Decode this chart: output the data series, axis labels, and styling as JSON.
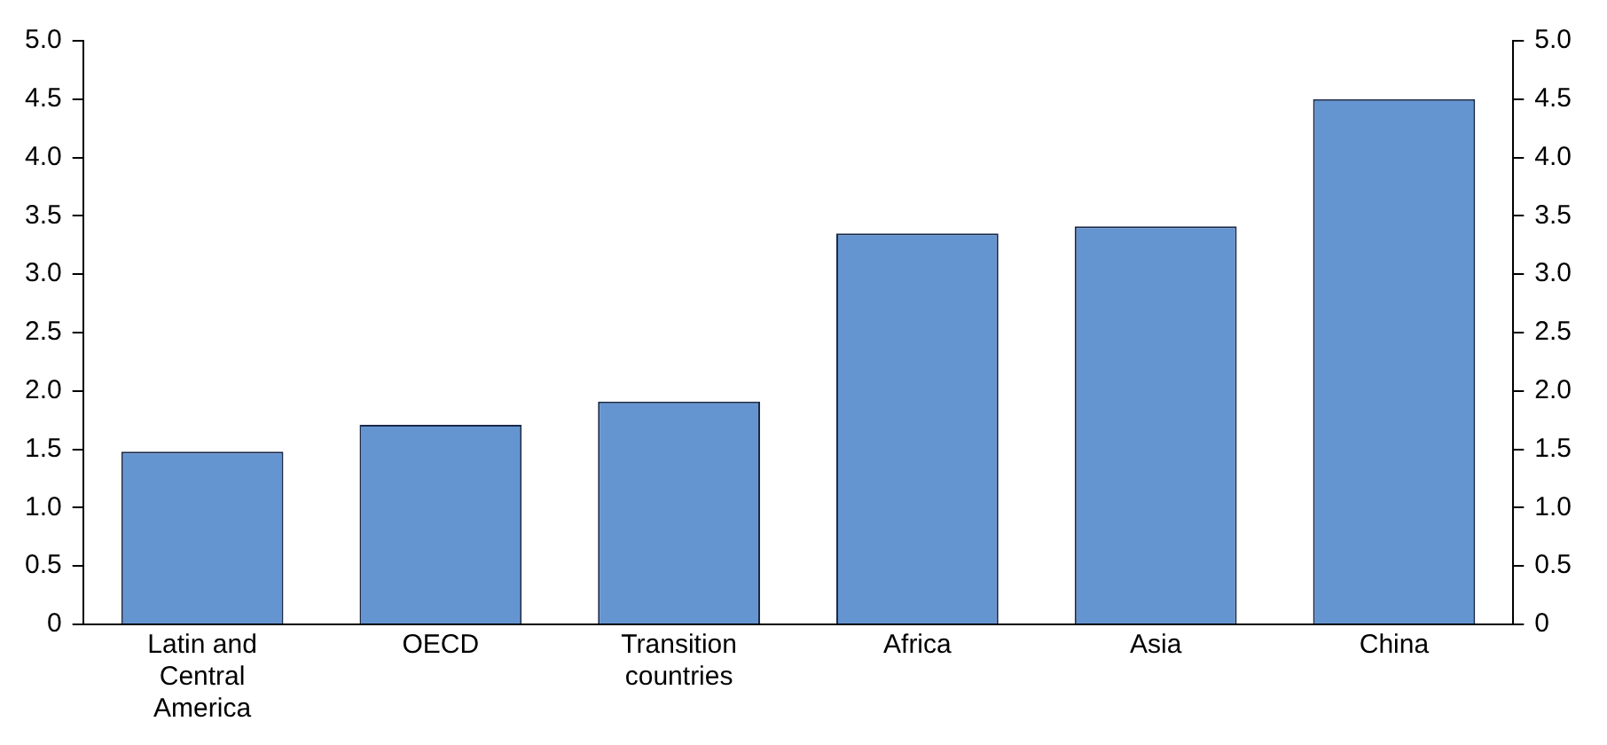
{
  "chart_data": {
    "type": "bar",
    "categories": [
      "Latin and Central America",
      "OECD",
      "Transition countries",
      "Africa",
      "Asia",
      "China"
    ],
    "values": [
      1.48,
      1.71,
      1.91,
      3.35,
      3.41,
      4.5
    ],
    "color": "#6495d1",
    "ylim": [
      0,
      5
    ],
    "yticks": [
      0,
      0.5,
      {
        "value": 1,
        "label": "1.0"
      },
      1.5,
      {
        "value": 2,
        "label": "2.0"
      },
      2.5,
      {
        "value": 3,
        "label": "3.0"
      },
      3.5,
      {
        "value": 4,
        "label": "4.0"
      },
      4.5,
      {
        "value": 5,
        "label": "5.0"
      }
    ],
    "y2lim": [
      0,
      5
    ],
    "y2ticks": [
      0,
      0.5,
      {
        "value": 1,
        "label": "1.0"
      },
      1.5,
      {
        "value": 2,
        "label": "2.0"
      },
      2.5,
      {
        "value": 3,
        "label": "3.0"
      },
      3.5,
      {
        "value": 4,
        "label": "4.0"
      },
      4.5,
      {
        "value": 5,
        "label": "5.0"
      }
    ],
    "grid": false,
    "legend": false
  }
}
